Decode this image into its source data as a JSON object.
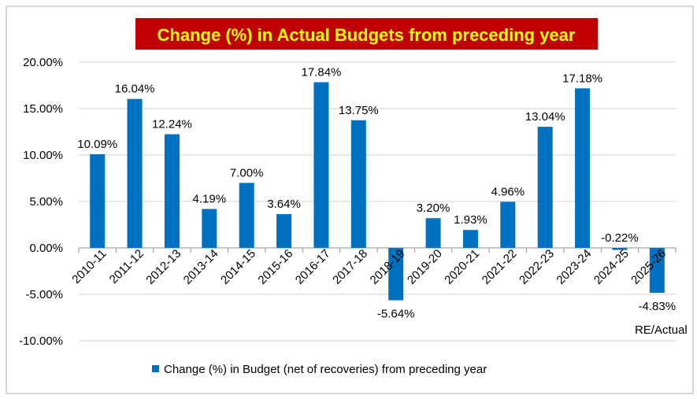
{
  "chart_data": {
    "type": "bar",
    "title": "Change (%) in Actual Budgets from preceding year",
    "title_colors": {
      "background": "#c00000",
      "text": "#ffff00"
    },
    "bar_color": "#0070c0",
    "categories": [
      "2010-11",
      "2011-12",
      "2012-13",
      "2013-14",
      "2014-15",
      "2015-16",
      "2016-17",
      "2017-18",
      "2018-19",
      "2019-20",
      "2020-21",
      "2021-22",
      "2022-23",
      "2023-24",
      "2024-25",
      "2025-26"
    ],
    "series": [
      {
        "name": "Change (%) in Budget (net of recoveries) from preceding year",
        "values": [
          10.09,
          16.04,
          12.24,
          4.19,
          7.0,
          3.64,
          17.84,
          13.75,
          -5.64,
          3.2,
          1.93,
          4.96,
          13.04,
          17.18,
          -0.22,
          -4.83
        ],
        "labels": [
          "10.09%",
          "16.04%",
          "12.24%",
          "4.19%",
          "7.00%",
          "3.64%",
          "17.84%",
          "13.75%",
          "-5.64%",
          "3.20%",
          "1.93%",
          "4.96%",
          "13.04%",
          "17.18%",
          "-0.22%",
          "-4.83%"
        ]
      }
    ],
    "annotation": "RE/Actual",
    "yticks": [
      "-10.00%",
      "-5.00%",
      "0.00%",
      "5.00%",
      "10.00%",
      "15.00%",
      "20.00%"
    ],
    "ylim": [
      -10,
      20
    ],
    "grid": true,
    "legend_position": "bottom"
  }
}
